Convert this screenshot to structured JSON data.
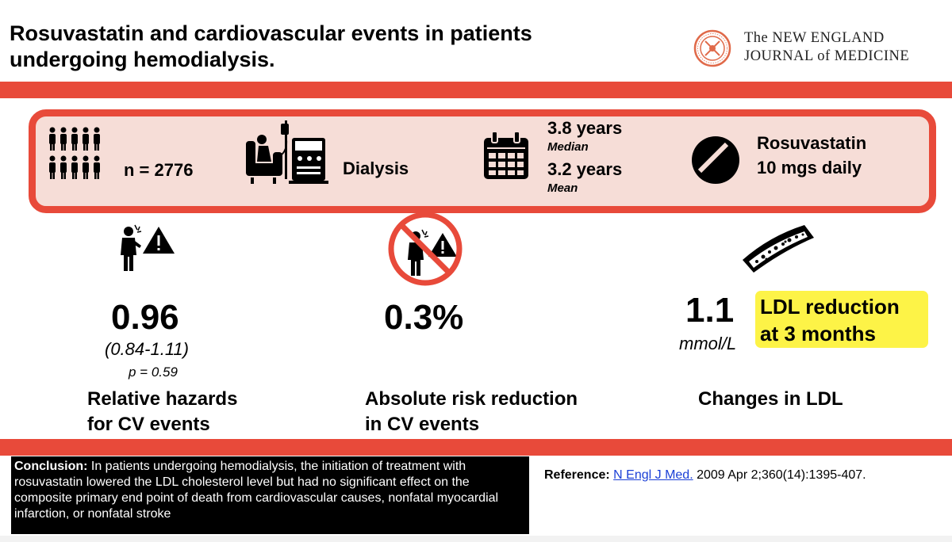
{
  "header": {
    "title": "Rosuvastatin and cardiovascular events in patients undergoing hemodialysis.",
    "journal_line1": "The NEW ENGLAND",
    "journal_line2": "JOURNAL of MEDICINE",
    "accent_color": "#e84a3a"
  },
  "summary": {
    "n_label": "n = 2776",
    "dialysis_label": "Dialysis",
    "median_value": "3.8 years",
    "median_label": "Median",
    "mean_value": "3.2 years",
    "mean_label": "Mean",
    "drug_name": "Rosuvastatin",
    "drug_dose": "10 mgs daily"
  },
  "results": {
    "hazard_value": "0.96",
    "hazard_ci": "(0.84-1.11)",
    "hazard_p": "p = 0.59",
    "hazard_label_1": "Relative hazards",
    "hazard_label_2": "for CV events",
    "arr_value": "0.3%",
    "arr_label_1": "Absolute risk reduction",
    "arr_label_2": "in CV events",
    "ldl_value": "1.1",
    "ldl_unit": "mmol/L",
    "ldl_highlight_1": "LDL reduction",
    "ldl_highlight_2": "at 3 months",
    "ldl_label": "Changes in LDL",
    "highlight_color": "#fdf347"
  },
  "conclusion": {
    "heading": "Conclusion:",
    "text": "In patients undergoing hemodialysis, the initiation of treatment with rosuvastatin lowered the LDL cholesterol level but had no significant effect on the composite primary end point of death from cardiovascular causes, nonfatal myocardial infarction, or nonfatal stroke"
  },
  "reference": {
    "label": "Reference:",
    "link_text": "N Engl J Med.",
    "citation": "2009 Apr 2;360(14):1395-407."
  },
  "icons": [
    "people-icon",
    "dialysis-patient-icon",
    "calendar-icon",
    "pill-icon",
    "chest-pain-warning-icon",
    "no-chest-pain-icon",
    "artery-plaque-icon",
    "nejm-seal-icon"
  ]
}
